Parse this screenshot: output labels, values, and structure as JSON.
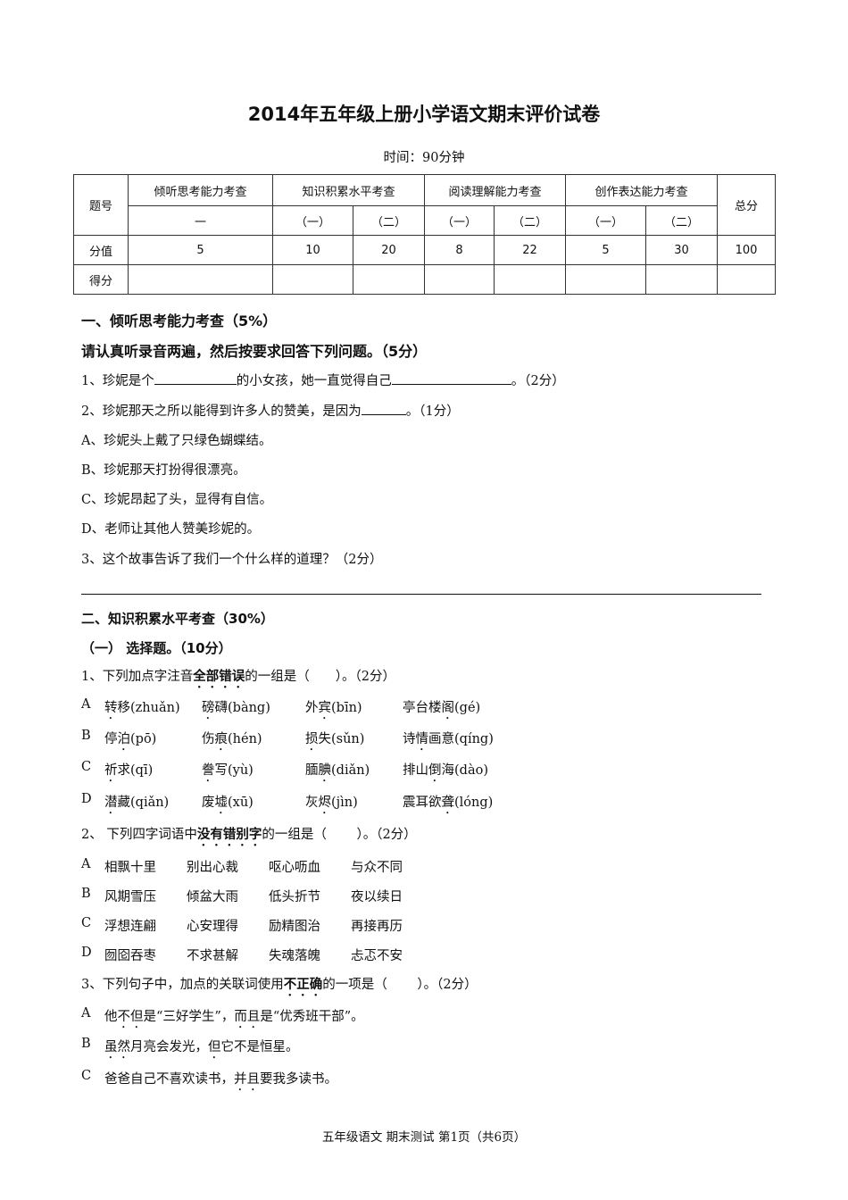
{
  "title": "2014年五年级上册小学语文期末评价试卷",
  "time": "时间：90分钟",
  "table": {
    "row_head": "题号",
    "total": "总分",
    "groups": [
      "倾听思考能力考查",
      "知识积累水平考查",
      "阅读理解能力考查",
      "创作表达能力考查"
    ],
    "subs": [
      "一",
      "（一）",
      "（二）",
      "（一）",
      "（二）",
      "（一）",
      "（二）"
    ],
    "score_label": "分值",
    "scores": [
      "5",
      "10",
      "20",
      "8",
      "22",
      "5",
      "30",
      "100"
    ],
    "got_label": "得分"
  },
  "s1": {
    "heading": "一、倾听思考能力考查（5%）",
    "instr": "请认真听录音两遍，然后按要求回答下列问题。（5分）",
    "q1": {
      "a": "1、珍妮是个",
      "b": "的小女孩，她一直觉得自己",
      "c": "。（2分）"
    },
    "q2": {
      "a": "2、珍妮那天之所以能得到许多人的赞美，是因为",
      "c": "。（1分）"
    },
    "q2_options": [
      "A、珍妮头上戴了只绿色蝴蝶结。",
      "B、珍妮那天打扮得很漂亮。",
      "C、珍妮昂起了头，显得有自信。",
      "D、老师让其他人赞美珍妮的。"
    ],
    "q3": "3、这个故事告诉了我们一个什么样的道理？（2分）"
  },
  "s2": {
    "heading": "二、知识积累水平考查（30%）",
    "sub1": "（一） 选择题。（10分）",
    "q1": {
      "pre": "1、下列加点字注音",
      "em": "全部错误",
      "post": "的一组是（　　）。（2分）"
    },
    "q1_options": [
      {
        "label": "A",
        "items": [
          {
            "w": "转移",
            "d": 0,
            "py": "(zhuǎn)"
          },
          {
            "w": "磅礴",
            "d": 0,
            "py": "(bàng)"
          },
          {
            "w": "外宾",
            "d": 1,
            "py": "(bīn)"
          },
          {
            "w": "亭台楼阁",
            "d": 3,
            "py": "(gé)"
          }
        ]
      },
      {
        "label": "B",
        "items": [
          {
            "w": "停泊",
            "d": 1,
            "py": "(pō)"
          },
          {
            "w": "伤痕",
            "d": 1,
            "py": "(hén)"
          },
          {
            "w": "损失",
            "d": 0,
            "py": "(sǔn)"
          },
          {
            "w": "诗情画意",
            "d": 1,
            "py": "(qíng)"
          }
        ]
      },
      {
        "label": "C",
        "items": [
          {
            "w": "祈求",
            "d": 0,
            "py": "(qī)"
          },
          {
            "w": "誊写",
            "d": 0,
            "py": "(yù)"
          },
          {
            "w": "腼腆",
            "d": 1,
            "py": "(diǎn)"
          },
          {
            "w": "排山倒海",
            "d": 2,
            "py": "(dào)"
          }
        ]
      },
      {
        "label": "D",
        "items": [
          {
            "w": "潜藏",
            "d": 0,
            "py": "(qiǎn)"
          },
          {
            "w": "废墟",
            "d": 1,
            "py": "(xū)"
          },
          {
            "w": "灰烬",
            "d": 1,
            "py": "(jìn)"
          },
          {
            "w": "震耳欲聋",
            "d": 3,
            "py": "(lóng)"
          }
        ]
      }
    ],
    "q2": {
      "pre": "2、 下列四字词语中",
      "em": "没有错别字",
      "post": "的一组是（　　 ）。（2分）"
    },
    "q2_options": [
      {
        "label": "A",
        "items": [
          "相飘十里",
          "别出心裁",
          "呕心呖血",
          "与众不同"
        ]
      },
      {
        "label": "B",
        "items": [
          "风期雪压",
          "倾盆大雨",
          "低头折节",
          "夜以续日"
        ]
      },
      {
        "label": "C",
        "items": [
          "浮想连翩",
          "心安理得",
          "励精图治",
          "再接再历"
        ]
      },
      {
        "label": "D",
        "items": [
          "囫囵吞枣",
          "不求甚解",
          "失魂落魄",
          "忐忑不安"
        ]
      }
    ],
    "q3": {
      "pre": "3、下列句子中，加点的关联词使用",
      "em": "不正确",
      "post": "的一项是（　　 ）。（2分）"
    },
    "q3_options": [
      {
        "label": "A",
        "segs": [
          {
            "t": "他"
          },
          {
            "t": "不但",
            "dot": true
          },
          {
            "t": "是“三好学生”，"
          },
          {
            "t": "而且",
            "dot": true
          },
          {
            "t": "是“优秀班干部”。"
          }
        ]
      },
      {
        "label": "B",
        "segs": [
          {
            "t": "虽然",
            "dot": true
          },
          {
            "t": "月亮会发光，"
          },
          {
            "t": "但",
            "dot": true
          },
          {
            "t": "它不是恒星。"
          }
        ]
      },
      {
        "label": "C",
        "segs": [
          {
            "t": "爸爸自己不喜欢读书，"
          },
          {
            "t": "并且",
            "dot": true
          },
          {
            "t": "要我多读书。"
          }
        ]
      }
    ]
  },
  "footer": "五年级语文 期末测试 第1页（共6页）"
}
